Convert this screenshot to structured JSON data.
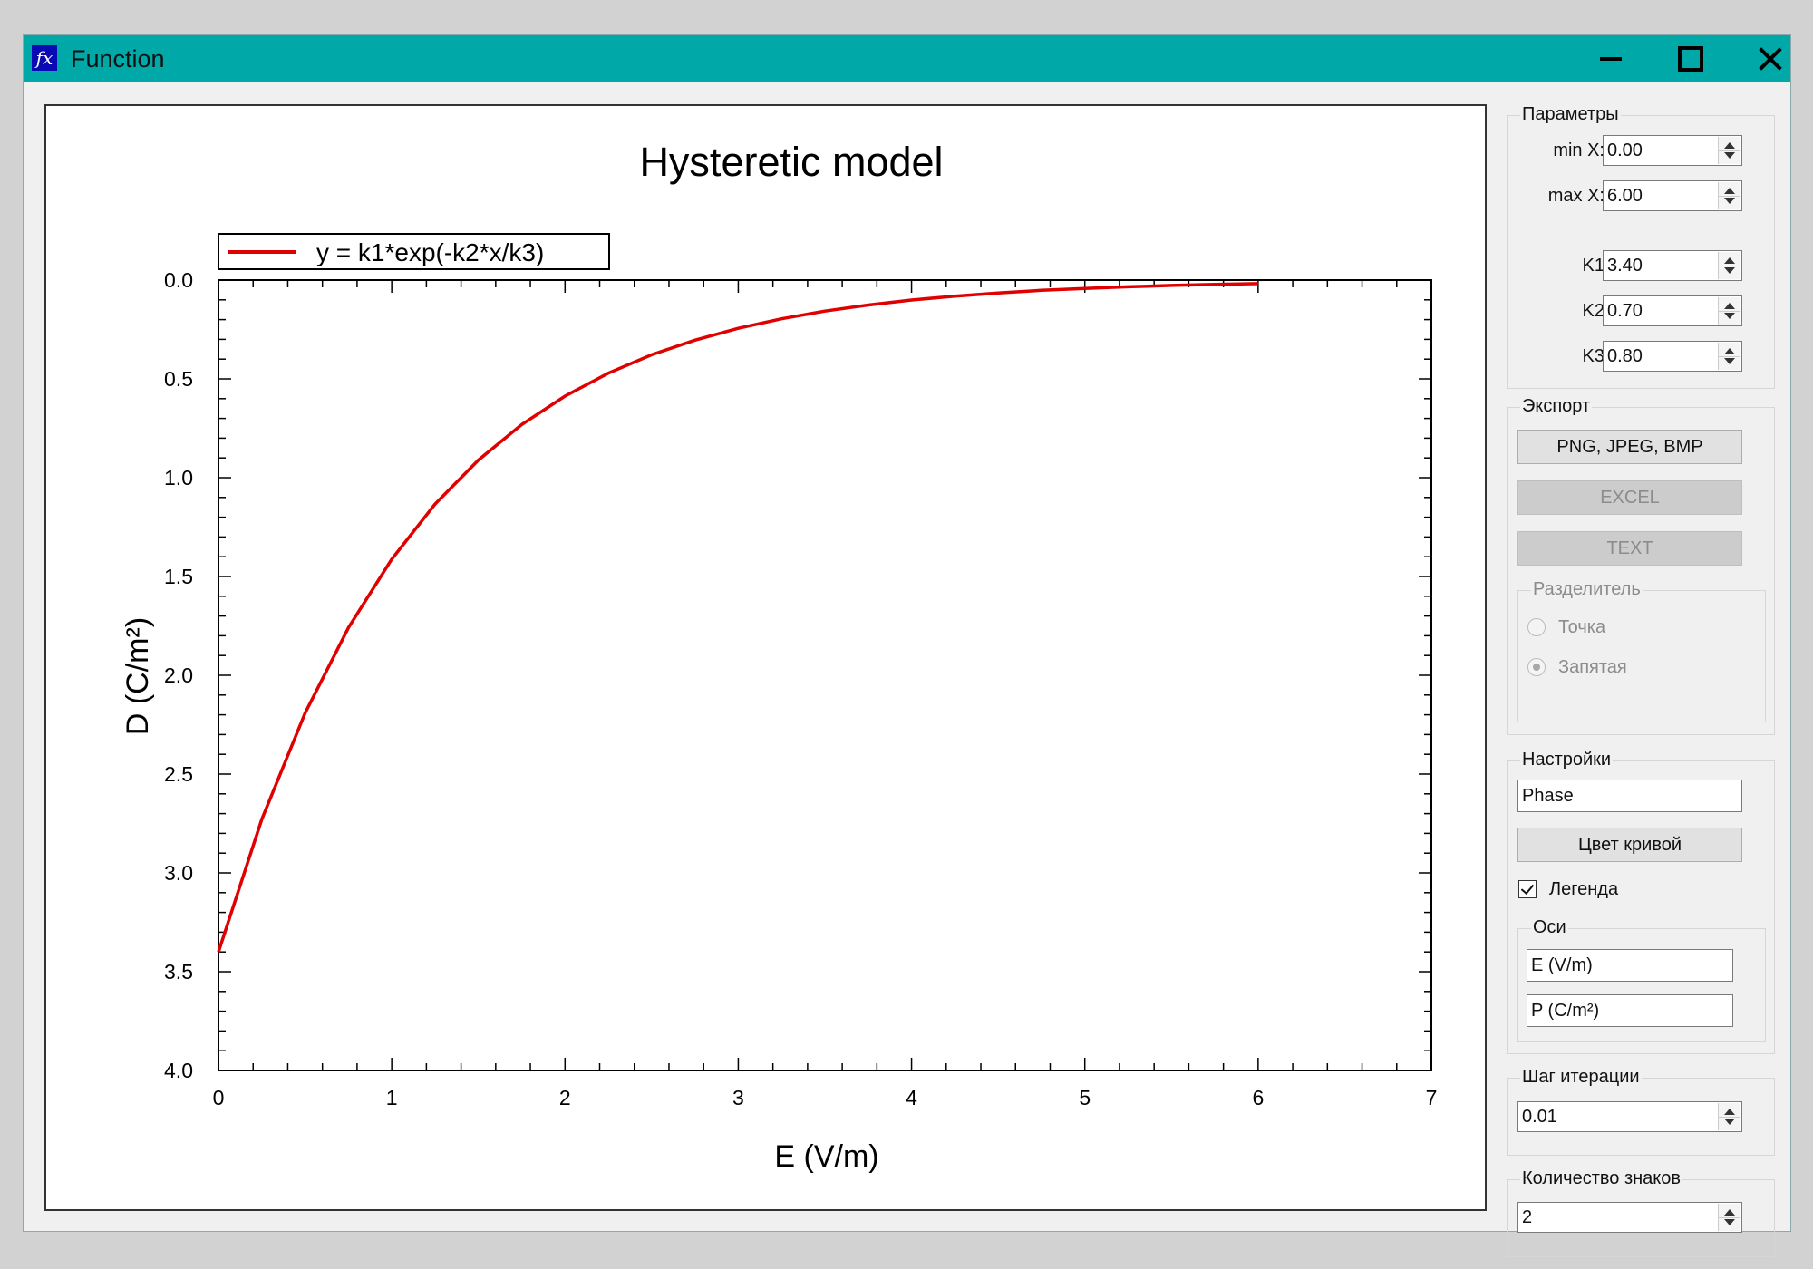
{
  "window": {
    "title": "Function"
  },
  "chart_data": {
    "type": "line",
    "title": "Hysteretic model",
    "xlabel": "E (V/m)",
    "ylabel": "D (C/m²)",
    "xlim": [
      0,
      7
    ],
    "ylim": [
      0.0,
      4.0
    ],
    "y_inverted": true,
    "x_ticks": [
      "0",
      "1",
      "2",
      "3",
      "4",
      "5",
      "6",
      "7"
    ],
    "y_ticks": [
      "0.0",
      "0.5",
      "1.0",
      "1.5",
      "2.0",
      "2.5",
      "3.0",
      "3.5",
      "4.0"
    ],
    "legend": "top-left",
    "grid": false,
    "series": [
      {
        "name": "y = k1*exp(-k2*x/k3)",
        "color": "#e00000",
        "x": [
          0,
          0.25,
          0.5,
          0.75,
          1,
          1.25,
          1.5,
          1.75,
          2,
          2.25,
          2.5,
          2.75,
          3,
          3.25,
          3.5,
          3.75,
          4,
          4.25,
          4.5,
          4.75,
          5,
          5.25,
          5.5,
          5.75,
          6
        ],
        "y": [
          3.4,
          2.729,
          2.191,
          1.759,
          1.413,
          1.134,
          0.911,
          0.731,
          0.587,
          0.471,
          0.378,
          0.304,
          0.244,
          0.196,
          0.157,
          0.126,
          0.101,
          0.081,
          0.065,
          0.052,
          0.042,
          0.034,
          0.027,
          0.022,
          0.018
        ]
      }
    ]
  },
  "panel": {
    "params": {
      "title": "Параметры",
      "min_x_label": "min X:",
      "min_x": "0.00",
      "max_x_label": "max X:",
      "max_x": "6.00",
      "k1_label": "K1",
      "k1": "3.40",
      "k2_label": "K2",
      "k2": "0.70",
      "k3_label": "K3",
      "k3": "0.80"
    },
    "export": {
      "title": "Экспорт",
      "image_button": "PNG, JPEG, BMP",
      "excel_button": "EXCEL",
      "text_button": "TEXT",
      "separator": {
        "title": "Разделитель",
        "dot": "Точка",
        "comma": "Запятая"
      }
    },
    "settings": {
      "title": "Настройки",
      "name_value": "Phase",
      "curve_color_button": "Цвет кривой",
      "legend_label": "Легенда",
      "axes": {
        "title": "Оси",
        "x_axis_value": "E (V/m)",
        "y_axis_value": "P (C/m²)"
      }
    },
    "iteration": {
      "title": "Шаг итерации",
      "value": "0.01"
    },
    "digits": {
      "title": "Количество знаков",
      "value": "2"
    }
  }
}
